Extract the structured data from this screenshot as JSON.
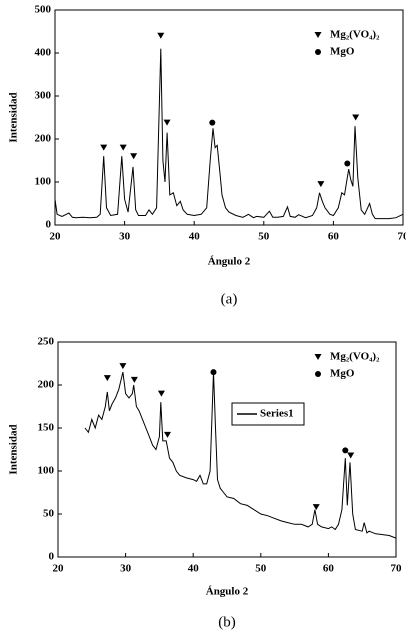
{
  "chart_data": [
    {
      "type": "line",
      "caption": "(a)",
      "x_label": "Ángulo 2",
      "y_label": "Intensidad",
      "xlim": [
        20,
        70
      ],
      "ylim": [
        0,
        500
      ],
      "xticks": [
        20,
        30,
        40,
        50,
        60,
        70
      ],
      "yticks": [
        0,
        100,
        200,
        300,
        400,
        500
      ],
      "series": [
        {
          "color": "#000000",
          "x": [
            20,
            20.3,
            21,
            22,
            22.5,
            23,
            24,
            25,
            26,
            26.5,
            27,
            27.4,
            28,
            29,
            29.6,
            30,
            30.5,
            31.2,
            31.6,
            32,
            33,
            33.5,
            34,
            34.6,
            35.2,
            35.5,
            35.8,
            36.1,
            36.5,
            37,
            37.5,
            38,
            38.4,
            39,
            40,
            41,
            41.8,
            42.3,
            42.7,
            43,
            43.3,
            43.7,
            44,
            44.5,
            45,
            46,
            47,
            47.8,
            48.5,
            49,
            50,
            50.8,
            51.3,
            52,
            52.8,
            53.4,
            53.8,
            54.5,
            55,
            56,
            57,
            57.6,
            58,
            58.4,
            58.8,
            59.5,
            60,
            60.7,
            61.2,
            61.6,
            62.2,
            62.5,
            62.8,
            63.1,
            63.5,
            64,
            64.5,
            65.2,
            65.6,
            66,
            67,
            68,
            69,
            70
          ],
          "values": [
            60,
            25,
            20,
            28,
            18,
            17,
            18,
            17,
            18,
            25,
            160,
            40,
            22,
            25,
            160,
            60,
            30,
            135,
            35,
            22,
            22,
            35,
            25,
            40,
            410,
            150,
            100,
            215,
            70,
            75,
            45,
            55,
            35,
            25,
            22,
            25,
            40,
            150,
            225,
            180,
            185,
            120,
            70,
            40,
            30,
            22,
            18,
            25,
            17,
            20,
            18,
            32,
            18,
            18,
            20,
            42,
            20,
            18,
            24,
            17,
            22,
            40,
            75,
            55,
            40,
            25,
            22,
            40,
            75,
            70,
            130,
            105,
            90,
            230,
            110,
            35,
            25,
            50,
            25,
            15,
            15,
            15,
            17,
            25
          ]
        },
        {
          "name": "Mg₂(VO₄)₂",
          "color": "#000000",
          "marker": "triangle",
          "x": [
            27,
            29.8,
            31.3,
            35.2,
            36.1,
            58.2,
            63.2
          ],
          "values": [
            180,
            180,
            160,
            440,
            238,
            95,
            250
          ]
        },
        {
          "name": "MgO",
          "color": "#000000",
          "marker": "circle",
          "x": [
            42.6,
            62
          ],
          "values": [
            238,
            143
          ]
        }
      ]
    },
    {
      "type": "line",
      "caption": "(b)",
      "x_label": "Ángulo 2",
      "y_label": "Intensidad",
      "xlim": [
        20,
        70
      ],
      "ylim": [
        0,
        250
      ],
      "xticks": [
        20,
        30,
        40,
        50,
        60,
        70
      ],
      "yticks": [
        0,
        50,
        100,
        150,
        200,
        250
      ],
      "series": [
        {
          "name": "Series1",
          "color": "#000000",
          "x": [
            24,
            24.5,
            25,
            25.5,
            26,
            26.5,
            27,
            27.3,
            27.6,
            28,
            28.5,
            29,
            29.6,
            30,
            30.5,
            31,
            31.2,
            31.6,
            32,
            32.5,
            33,
            33.5,
            34,
            34.5,
            35,
            35.2,
            35.5,
            36,
            36.5,
            37,
            37.5,
            38,
            39,
            40,
            40.5,
            41,
            41.5,
            42,
            42.5,
            43,
            43.3,
            43.6,
            44,
            44.5,
            45,
            46,
            47,
            48,
            49,
            50,
            51,
            52,
            53,
            54,
            55,
            56,
            57,
            57.6,
            58,
            58.4,
            59,
            60,
            60.5,
            61,
            61.5,
            62,
            62.5,
            62.8,
            63.2,
            63.6,
            64,
            65,
            65.3,
            65.7,
            66,
            67,
            68,
            69,
            70
          ],
          "values": [
            150,
            145,
            160,
            150,
            165,
            160,
            175,
            192,
            170,
            178,
            185,
            195,
            215,
            190,
            185,
            190,
            200,
            175,
            170,
            160,
            150,
            140,
            130,
            125,
            140,
            180,
            135,
            135,
            115,
            110,
            100,
            95,
            92,
            90,
            88,
            95,
            85,
            85,
            100,
            215,
            150,
            90,
            80,
            75,
            70,
            68,
            62,
            60,
            55,
            50,
            48,
            45,
            42,
            40,
            38,
            38,
            35,
            38,
            55,
            38,
            35,
            33,
            35,
            32,
            38,
            55,
            115,
            60,
            110,
            50,
            32,
            30,
            40,
            28,
            30,
            27,
            26,
            25,
            22
          ]
        },
        {
          "name": "Mg₂(VO₄)₂",
          "color": "#000000",
          "marker": "triangle",
          "x": [
            27.3,
            29.6,
            31.3,
            35.3,
            36.2,
            58.2,
            63.3
          ],
          "values": [
            208,
            222,
            206,
            190,
            142,
            58,
            118
          ]
        },
        {
          "name": "MgO",
          "color": "#000000",
          "marker": "circle",
          "x": [
            43,
            62.5
          ],
          "values": [
            215,
            124
          ]
        }
      ]
    }
  ]
}
